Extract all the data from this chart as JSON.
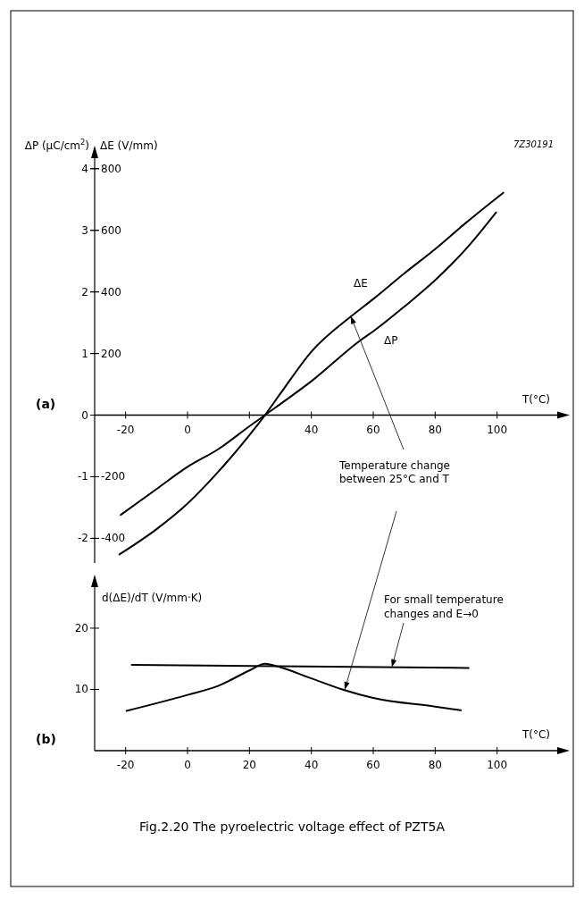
{
  "chart_data": [
    {
      "type": "line",
      "xlabel": "T(°C)",
      "ylabel": "ΔP (µC/cm$^{2}$)",
      "y2label": "ΔE (V/mm)",
      "xlim": [
        -30,
        120
      ],
      "ylim": [
        -2.4,
        4.2
      ],
      "y2lim": [
        -480,
        840
      ],
      "xticks": [
        -20,
        0,
        {
          "value": 20,
          "label": null
        },
        40,
        60,
        80,
        100
      ],
      "yticks": [
        -2,
        -1,
        0,
        1,
        2,
        3,
        4
      ],
      "y2ticks": [
        -400,
        -200,
        200,
        400,
        600,
        800
      ],
      "grid": false,
      "marker": "none",
      "line_style": "solid",
      "series": [
        {
          "name": "ΔE",
          "color": "#000000",
          "axis": "y2",
          "x": [
            -22,
            -10,
            0,
            10,
            20,
            25,
            30,
            40,
            53,
            60,
            70,
            80,
            90,
            102
          ],
          "values": [
            -452,
            -370,
            -287,
            -183,
            -65,
            0,
            70,
            206,
            322,
            377,
            460,
            539,
            625,
            722
          ]
        },
        {
          "name": "ΔP",
          "color": "#000000",
          "x": [
            -21.6,
            -10,
            0,
            10,
            20,
            25,
            30,
            40,
            56,
            60,
            70,
            80,
            90,
            99.7
          ],
          "values": [
            -1.62,
            -1.2,
            -0.84,
            -0.55,
            -0.18,
            0,
            0.18,
            0.55,
            1.22,
            1.36,
            1.76,
            2.19,
            2.7,
            3.29
          ]
        }
      ],
      "annotations": [
        "7Z30191",
        "(a)",
        {
          "text": "Temperature change\nbetween 25°C and T",
          "x": 52.7,
          "y": 1.61
        }
      ]
    },
    {
      "type": "line",
      "xlabel": "T(°C)",
      "ylabel": "d(ΔE)/dT (V/mm·K)",
      "xlim": [
        -30,
        120
      ],
      "ylim": [
        0,
        27
      ],
      "xticks": [
        -20,
        0,
        20,
        40,
        60,
        80,
        100
      ],
      "yticks": [
        10,
        20
      ],
      "grid": false,
      "marker": "none",
      "line_style": "solid",
      "series": [
        {
          "color": "#000000",
          "x": [
            -18,
            90.8
          ],
          "values": [
            14.0,
            13.5
          ]
        },
        {
          "color": "#000000",
          "x": [
            -19.7,
            0,
            10,
            20,
            25,
            30,
            40,
            50,
            60,
            80,
            88.3
          ],
          "values": [
            6.5,
            9.1,
            10.6,
            13.1,
            14.2,
            13.6,
            11.8,
            10,
            8.6,
            7.2,
            6.6
          ]
        }
      ],
      "annotations": [
        "(b)",
        {
          "text": "For small temperature\nchanges and E→0",
          "x": 66,
          "y": 13.6
        },
        "Fig.2.20 The pyroelectric voltage effect of PZT5A"
      ]
    }
  ]
}
